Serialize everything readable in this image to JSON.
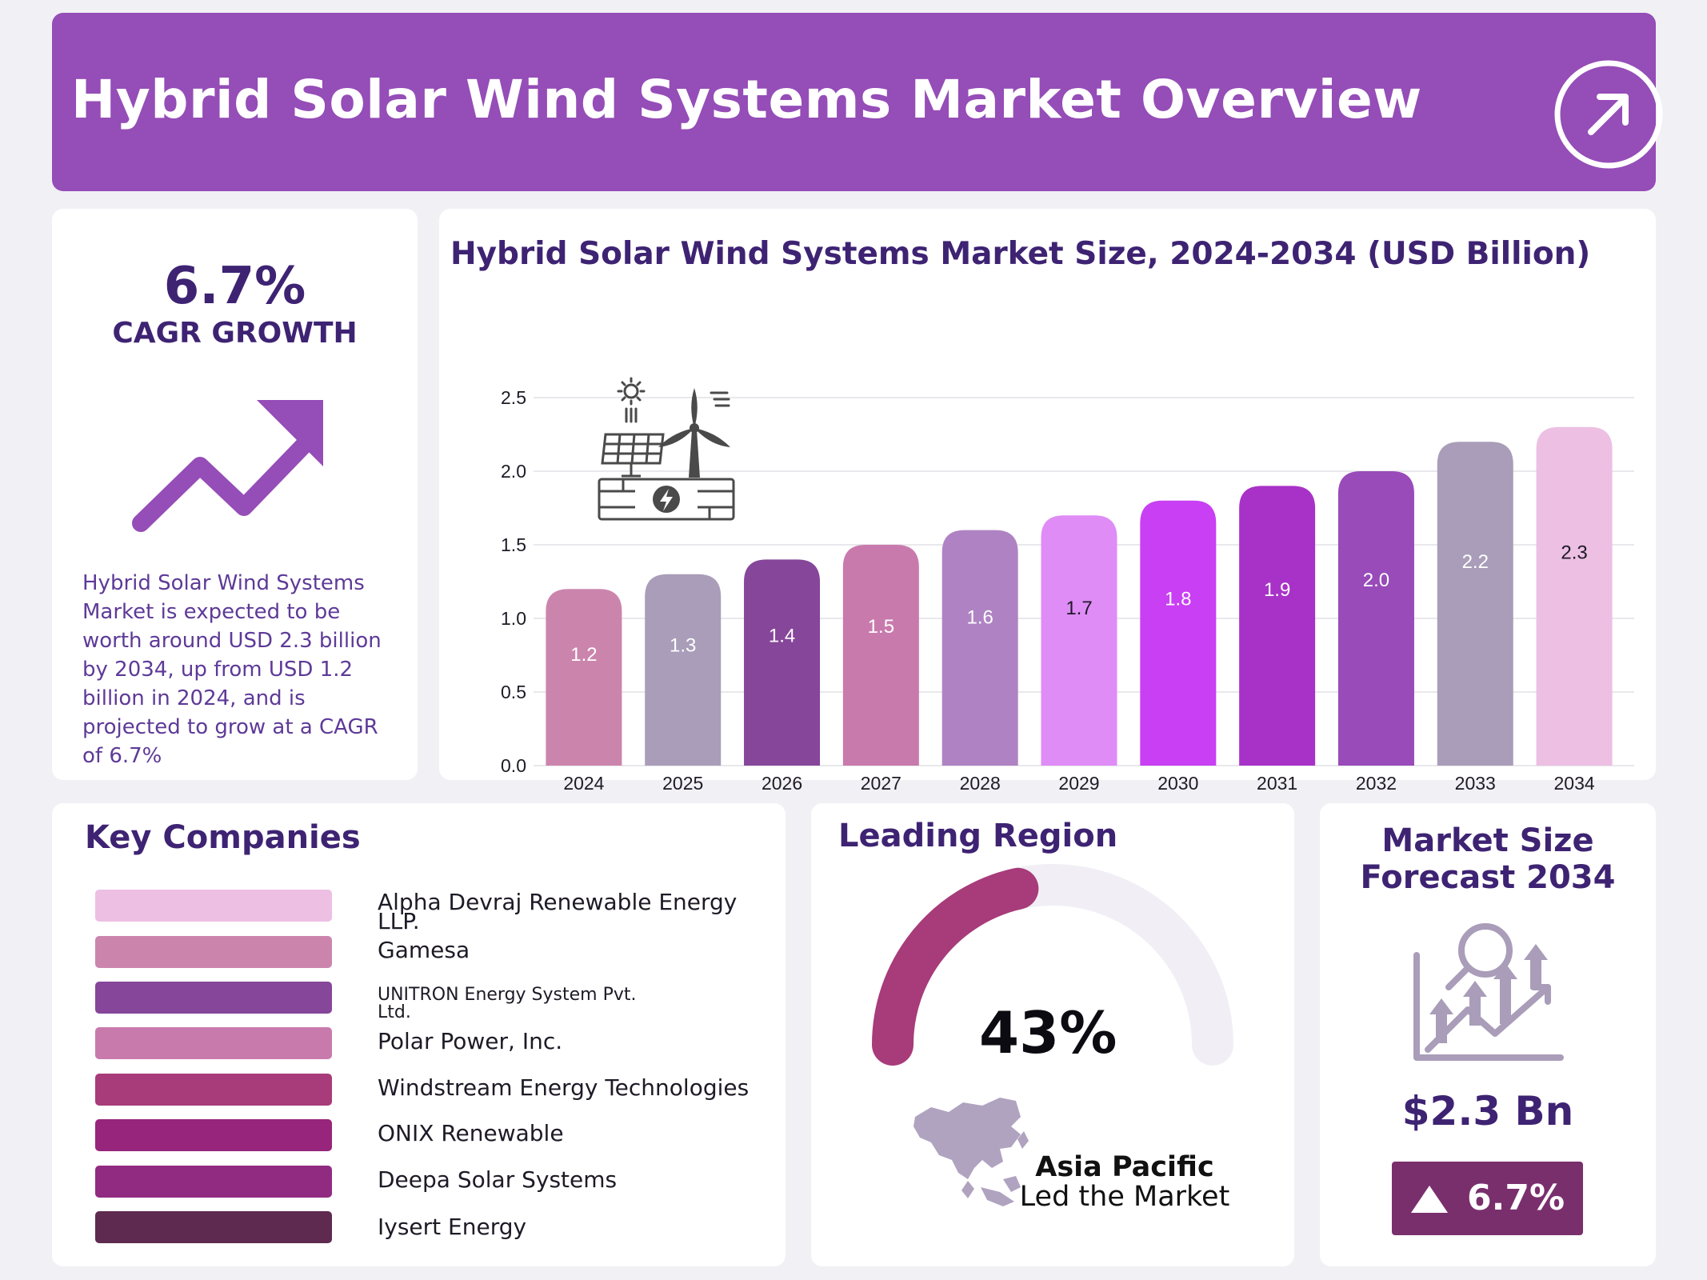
{
  "header": {
    "title": "Hybrid Solar Wind Systems Market Overview",
    "icon": "arrow-up-right-icon"
  },
  "cagr": {
    "value": "6.7%",
    "label": "CAGR GROWTH",
    "icon": "trend-up-icon",
    "description": "Hybrid Solar Wind Systems Market is expected to be worth around USD 2.3 billion by 2034, up from USD 1.2 billion in 2024, and is projected to grow at a CAGR of 6.7%"
  },
  "chart_data": {
    "type": "bar",
    "title": "Hybrid Solar Wind Systems Market Size, 2024-2034 (USD Billion)",
    "xlabel": "",
    "ylabel": "",
    "categories": [
      "2024",
      "2025",
      "2026",
      "2027",
      "2028",
      "2029",
      "2030",
      "2031",
      "2032",
      "2033",
      "2034"
    ],
    "values": [
      1.2,
      1.3,
      1.4,
      1.5,
      1.6,
      1.7,
      1.8,
      1.9,
      2.0,
      2.2,
      2.3
    ],
    "value_labels": [
      "1.2",
      "1.3",
      "1.4",
      "1.5",
      "1.6",
      "1.7",
      "1.8",
      "1.9",
      "2.0",
      "2.2",
      "2.3"
    ],
    "ylim": [
      0,
      2.5
    ],
    "yticks": [
      "0.0",
      "0.5",
      "1.0",
      "1.5",
      "2.0",
      "2.5"
    ],
    "grid": true,
    "bar_colors": [
      "#cb85ad",
      "#a99db9",
      "#86469a",
      "#c97aad",
      "#af83c3",
      "#df8cf7",
      "#c93ff4",
      "#a832c8",
      "#984bb9",
      "#a99db9",
      "#ecbfe3"
    ],
    "label_colors": [
      "#ffffff",
      "#ffffff",
      "#ffffff",
      "#ffffff",
      "#ffffff",
      "#1e1a26",
      "#ffffff",
      "#ffffff",
      "#ffffff",
      "#ffffff",
      "#1e1a26"
    ],
    "icon": "solar-wind-hybrid-icon"
  },
  "companies": {
    "title": "Key Companies",
    "items": [
      {
        "name": "Alpha Devraj Renewable Energy LLP.",
        "color": "#edbfe3"
      },
      {
        "name": "Gamesa",
        "color": "#cb85ad"
      },
      {
        "name": "UNITRON Energy System Pvt. Ltd.",
        "color": "#86469a"
      },
      {
        "name": "Polar Power, Inc.",
        "color": "#c97aad"
      },
      {
        "name": "Windstream Energy Technologies",
        "color": "#a83b79"
      },
      {
        "name": "ONIX Renewable",
        "color": "#97257b"
      },
      {
        "name": "Deepa Solar Systems",
        "color": "#912b82"
      },
      {
        "name": "Iysert Energy",
        "color": "#5e2a4f"
      }
    ]
  },
  "region": {
    "title": "Leading Region",
    "percent": "43%",
    "share": 0.43,
    "name": "Asia Pacific",
    "subtitle": "Led the Market",
    "gauge_color": "#a83b79",
    "track_color": "#f1eff5",
    "icon": "asia-pacific-map-icon"
  },
  "forecast": {
    "title_line1": "Market Size",
    "title_line2": "Forecast 2034",
    "value": "$2.3 Bn",
    "growth": "6.7%",
    "icon": "market-growth-magnifier-icon",
    "badge_icon": "triangle-up-icon"
  }
}
